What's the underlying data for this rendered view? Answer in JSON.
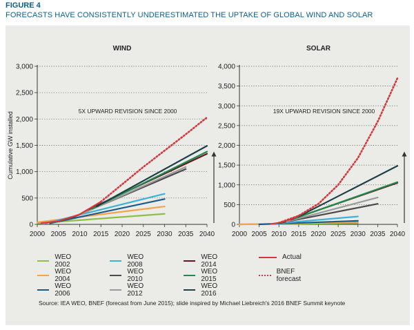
{
  "figure_label": "FIGURE 4",
  "figure_title": "FORECASTS HAVE CONSISTENTLY UNDERESTIMATED THE UPTAKE OF GLOBAL WIND AND SOLAR",
  "source_note": "Source: IEA WEO, BNEF (forecast from June 2015); slide inspired by Michael Liebreich's 2016 BNEF Summit keynote",
  "colors": {
    "WEO 2002": "#8dbf44",
    "WEO 2004": "#f4a34a",
    "WEO 2006": "#1a5a8a",
    "WEO 2008": "#3db0d8",
    "WEO 2010": "#4a4a4a",
    "WEO 2012": "#9a9a9a",
    "WEO 2014": "#6b1420",
    "WEO 2015": "#1e8a4c",
    "WEO 2016": "#1d3f47",
    "Actual": "#d9383a",
    "BNEF forecast": "#d9383a"
  },
  "legend": [
    {
      "label": "WEO 2002",
      "style": "solid"
    },
    {
      "label": "WEO 2004",
      "style": "solid"
    },
    {
      "label": "WEO 2006",
      "style": "solid"
    },
    {
      "label": "WEO 2008",
      "style": "solid"
    },
    {
      "label": "WEO 2010",
      "style": "solid"
    },
    {
      "label": "WEO 2012",
      "style": "solid"
    },
    {
      "label": "WEO 2014",
      "style": "solid"
    },
    {
      "label": "WEO 2015",
      "style": "solid"
    },
    {
      "label": "WEO 2016",
      "style": "solid"
    },
    {
      "label": "Actual",
      "style": "solid"
    },
    {
      "label": "BNEF forecast",
      "style": "dotted"
    }
  ],
  "chart_data": [
    {
      "type": "line",
      "title": "WIND",
      "annotation": "5X UPWARD REVISION SINCE 2000",
      "ylabel": "Cumulative GW installed",
      "xlabel": "",
      "xlim": [
        2000,
        2040
      ],
      "ylim": [
        0,
        3000
      ],
      "xticks": [
        "2000",
        "2005",
        "2010",
        "2015",
        "2020",
        "2025",
        "2030",
        "2035",
        "2040"
      ],
      "yticks": [
        "0",
        "500",
        "1,000",
        "1,500",
        "2,000",
        "2,500",
        "3,000"
      ],
      "grid": "dotted-horizontal",
      "upward_arrow": true,
      "series": [
        {
          "name": "WEO 2002",
          "x": [
            2000,
            2030
          ],
          "y": [
            20,
            200
          ]
        },
        {
          "name": "WEO 2004",
          "x": [
            2000,
            2030
          ],
          "y": [
            40,
            340
          ]
        },
        {
          "name": "WEO 2006",
          "x": [
            2003,
            2030
          ],
          "y": [
            20,
            480
          ]
        },
        {
          "name": "WEO 2008",
          "x": [
            2002,
            2030
          ],
          "y": [
            20,
            580
          ]
        },
        {
          "name": "WEO 2010",
          "x": [
            2008,
            2035
          ],
          "y": [
            120,
            1050
          ]
        },
        {
          "name": "WEO 2012",
          "x": [
            2010,
            2035
          ],
          "y": [
            180,
            1090
          ]
        },
        {
          "name": "WEO 2014",
          "x": [
            2012,
            2040
          ],
          "y": [
            280,
            1340
          ]
        },
        {
          "name": "WEO 2015",
          "x": [
            2013,
            2040
          ],
          "y": [
            300,
            1380
          ]
        },
        {
          "name": "WEO 2016",
          "x": [
            2014,
            2040
          ],
          "y": [
            340,
            1490
          ]
        },
        {
          "name": "Actual",
          "x": [
            2001,
            2005,
            2010,
            2015
          ],
          "y": [
            25,
            60,
            190,
            430
          ]
        },
        {
          "name": "BNEF forecast",
          "x": [
            2015,
            2020,
            2025,
            2030,
            2035,
            2040
          ],
          "y": [
            430,
            760,
            1090,
            1400,
            1710,
            2030
          ]
        }
      ]
    },
    {
      "type": "line",
      "title": "SOLAR",
      "annotation": "19X UPWARD REVISION SINCE 2000",
      "ylabel": "",
      "xlabel": "",
      "xlim": [
        2000,
        2040
      ],
      "ylim": [
        0,
        4000
      ],
      "xticks": [
        "2000",
        "2005",
        "2010",
        "2015",
        "2020",
        "2025",
        "2030",
        "2035",
        "2040"
      ],
      "yticks": [
        "0",
        "500",
        "1,000",
        "1,500",
        "2,000",
        "2,500",
        "3,000",
        "3,500",
        "4,000"
      ],
      "grid": "dotted-horizontal",
      "upward_arrow": true,
      "series": [
        {
          "name": "WEO 2002",
          "x": [
            2000,
            2030
          ],
          "y": [
            0,
            30
          ]
        },
        {
          "name": "WEO 2004",
          "x": [
            2000,
            2030
          ],
          "y": [
            0,
            60
          ]
        },
        {
          "name": "WEO 2006",
          "x": [
            2005,
            2030
          ],
          "y": [
            0,
            90
          ]
        },
        {
          "name": "WEO 2008",
          "x": [
            2008,
            2030
          ],
          "y": [
            10,
            200
          ]
        },
        {
          "name": "WEO 2010",
          "x": [
            2010,
            2035
          ],
          "y": [
            30,
            520
          ]
        },
        {
          "name": "WEO 2012",
          "x": [
            2012,
            2035
          ],
          "y": [
            70,
            680
          ]
        },
        {
          "name": "WEO 2014",
          "x": [
            2013,
            2040
          ],
          "y": [
            120,
            1050
          ]
        },
        {
          "name": "WEO 2015",
          "x": [
            2014,
            2040
          ],
          "y": [
            150,
            1070
          ]
        },
        {
          "name": "WEO 2016",
          "x": [
            2015,
            2040
          ],
          "y": [
            200,
            1480
          ]
        },
        {
          "name": "Actual",
          "x": [
            2008,
            2010,
            2013,
            2015
          ],
          "y": [
            10,
            40,
            130,
            220
          ]
        },
        {
          "name": "BNEF forecast",
          "x": [
            2010,
            2015,
            2020,
            2025,
            2030,
            2035,
            2040
          ],
          "y": [
            40,
            220,
            520,
            1000,
            1680,
            2600,
            3700
          ]
        }
      ]
    }
  ]
}
